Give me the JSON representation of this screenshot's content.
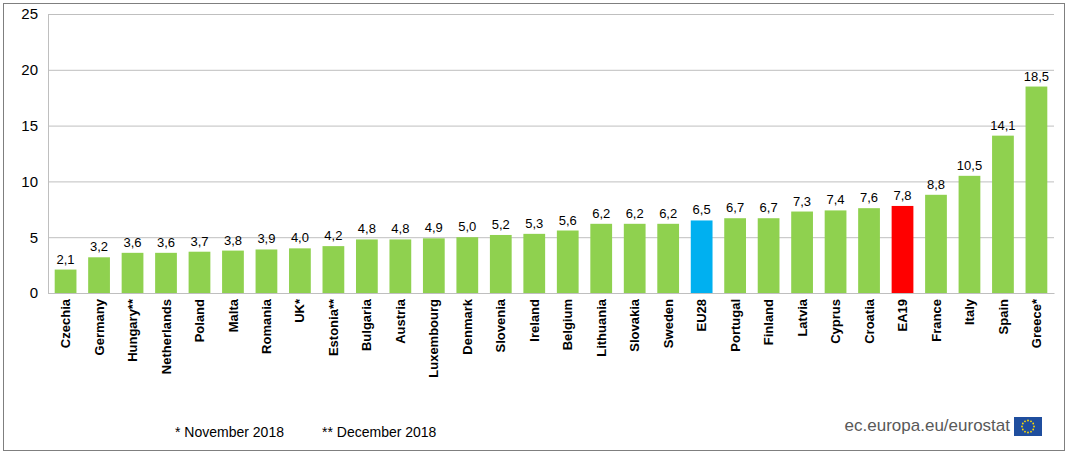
{
  "chart_data": {
    "type": "bar",
    "categories": [
      "Czechia",
      "Germany",
      "Hungary**",
      "Netherlands",
      "Poland",
      "Malta",
      "Romania",
      "UK*",
      "Estonia**",
      "Bulgaria",
      "Austria",
      "Luxembourg",
      "Denmark",
      "Slovenia",
      "Ireland",
      "Belgium",
      "Lithuania",
      "Slovakia",
      "Sweden",
      "EU28",
      "Portugal",
      "Finland",
      "Latvia",
      "Cyprus",
      "Croatia",
      "EA19",
      "France",
      "Italy",
      "Spain",
      "Greece*"
    ],
    "values": [
      2.1,
      3.2,
      3.6,
      3.6,
      3.7,
      3.8,
      3.9,
      4.0,
      4.2,
      4.8,
      4.8,
      4.9,
      5.0,
      5.2,
      5.3,
      5.6,
      6.2,
      6.2,
      6.2,
      6.5,
      6.7,
      6.7,
      7.3,
      7.4,
      7.6,
      7.8,
      8.8,
      10.5,
      14.1,
      18.5
    ],
    "value_labels": [
      "2,1",
      "3,2",
      "3,6",
      "3,6",
      "3,7",
      "3,8",
      "3,9",
      "4,0",
      "4,2",
      "4,8",
      "4,8",
      "4,9",
      "5,0",
      "5,2",
      "5,3",
      "5,6",
      "6,2",
      "6,2",
      "6,2",
      "6,5",
      "6,7",
      "6,7",
      "7,3",
      "7,4",
      "7,6",
      "7,8",
      "8,8",
      "10,5",
      "14,1",
      "18,5"
    ],
    "colors": [
      "#8fd14f",
      "#8fd14f",
      "#8fd14f",
      "#8fd14f",
      "#8fd14f",
      "#8fd14f",
      "#8fd14f",
      "#8fd14f",
      "#8fd14f",
      "#8fd14f",
      "#8fd14f",
      "#8fd14f",
      "#8fd14f",
      "#8fd14f",
      "#8fd14f",
      "#8fd14f",
      "#8fd14f",
      "#8fd14f",
      "#8fd14f",
      "#00b0f0",
      "#8fd14f",
      "#8fd14f",
      "#8fd14f",
      "#8fd14f",
      "#8fd14f",
      "#ff0000",
      "#8fd14f",
      "#8fd14f",
      "#8fd14f",
      "#8fd14f"
    ],
    "ylim": [
      0,
      25
    ],
    "yticks": [
      0,
      5,
      10,
      15,
      20,
      25
    ],
    "grid": true,
    "data_labels": true,
    "annotations": [
      "* November 2018",
      "** December 2018",
      "ec.europa.eu/eurostat"
    ]
  }
}
